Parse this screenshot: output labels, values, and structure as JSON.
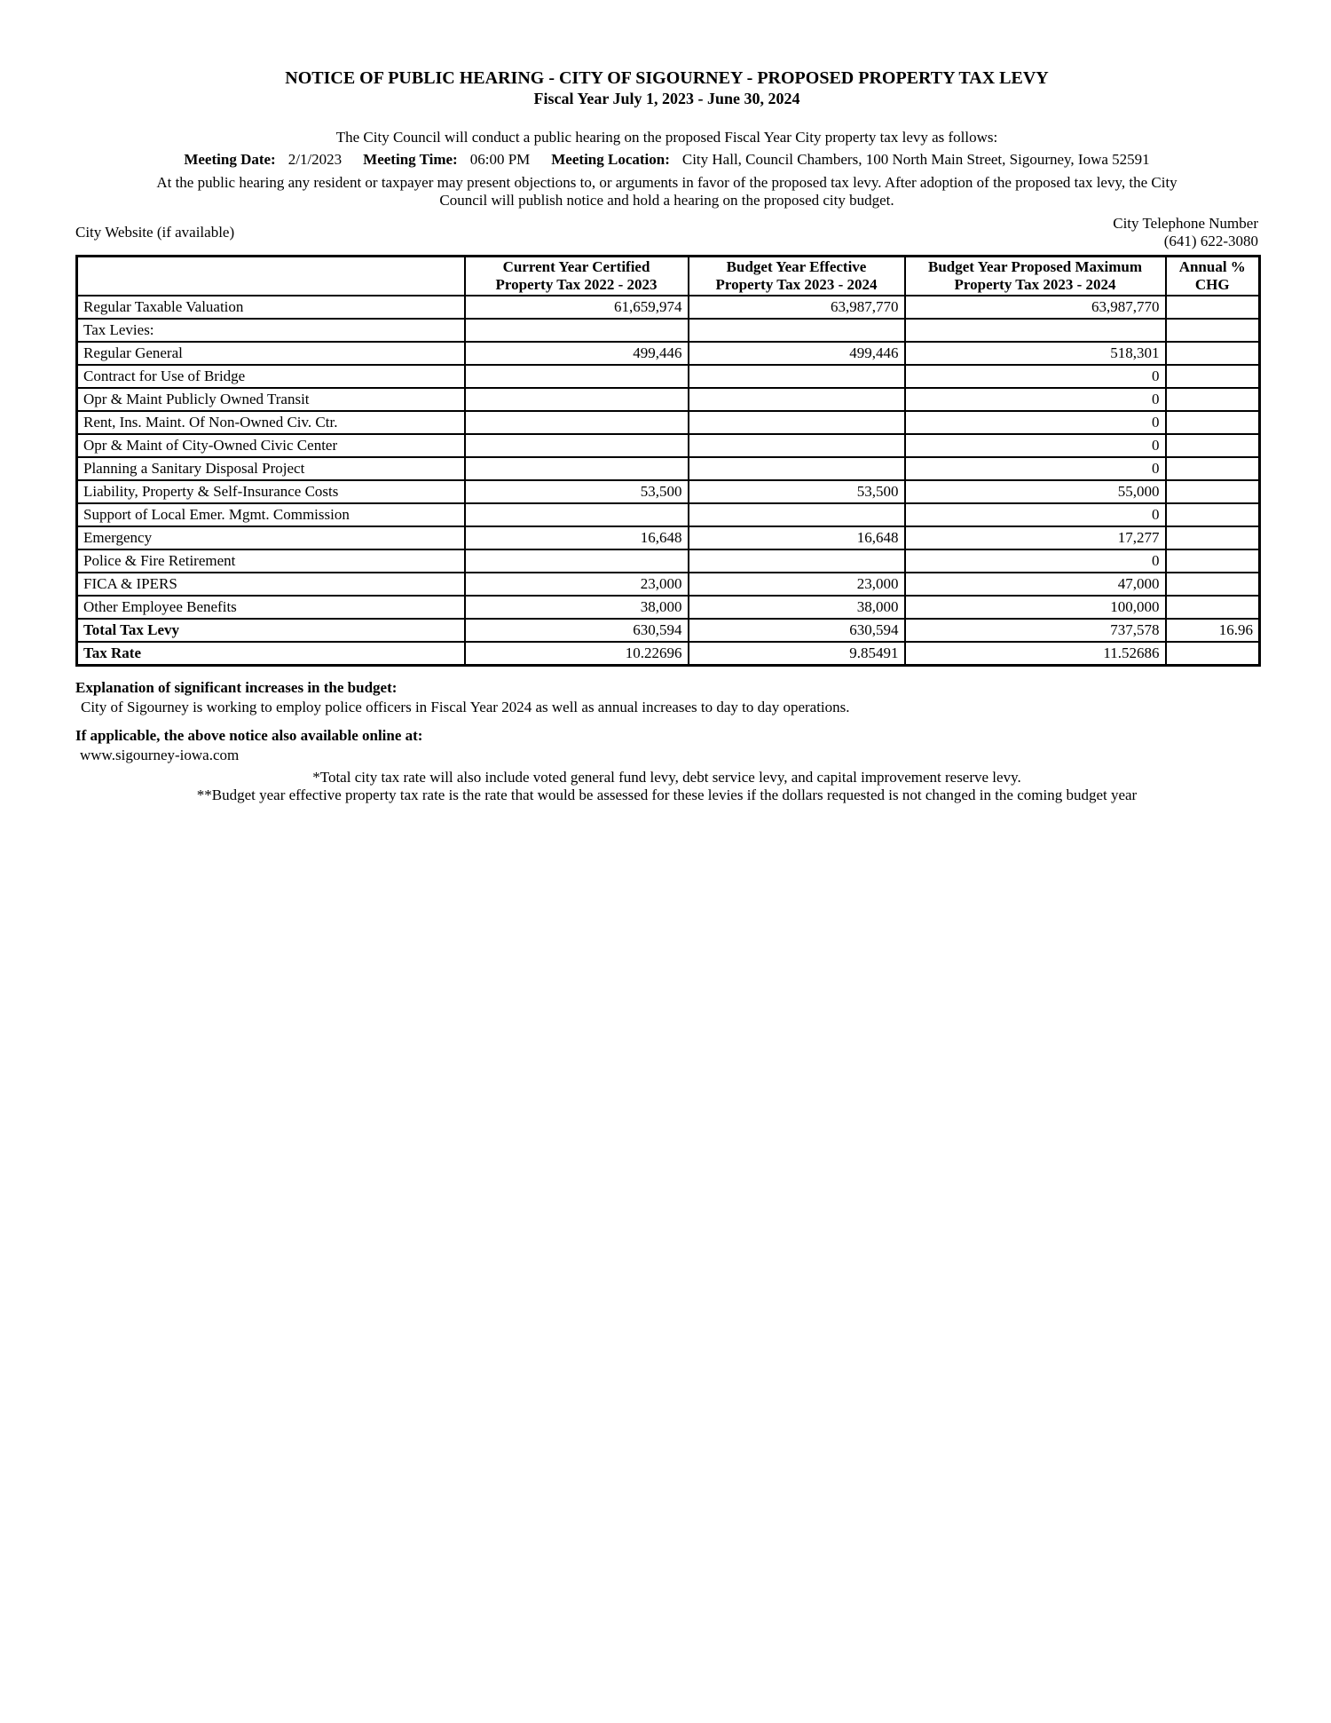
{
  "document": {
    "title": "NOTICE OF PUBLIC HEARING - CITY OF SIGOURNEY - PROPOSED PROPERTY TAX LEVY",
    "subtitle": "Fiscal Year July 1, 2023 - June 30, 2024",
    "intro": "The City Council will conduct a public hearing on the proposed Fiscal Year City property tax levy as follows:",
    "hearing_line1": "At the public hearing any resident or taxpayer may present objections to, or arguments in favor of the proposed tax levy. After adoption of the proposed tax levy, the City",
    "hearing_line2": "Council will publish notice and hold a hearing on the proposed city budget."
  },
  "meeting": {
    "date_label": "Meeting Date:",
    "date": "2/1/2023",
    "time_label": "Meeting Time:",
    "time": "06:00 PM",
    "location_label": "Meeting Location:",
    "location": "City Hall, Council Chambers, 100 North Main Street, Sigourney, Iowa 52591"
  },
  "contact": {
    "website_label": "City Website (if available)",
    "phone_label": "City Telephone Number",
    "phone_number": "(641) 622-3080"
  },
  "table": {
    "headers": [
      "",
      "Current Year Certified\nProperty Tax 2022 - 2023",
      "Budget Year Effective\nProperty Tax 2023 - 2024",
      "Budget Year Proposed Maximum\nProperty Tax 2023 - 2024",
      "Annual %\nCHG"
    ],
    "rows": [
      {
        "label": "Regular Taxable Valuation",
        "current": "61,659,974",
        "effective": "63,987,770",
        "proposed": "63,987,770",
        "chg": "",
        "bold": false
      },
      {
        "label": "Tax Levies:",
        "current": "",
        "effective": "",
        "proposed": "",
        "chg": "",
        "bold": false
      },
      {
        "label": "Regular General",
        "current": "499,446",
        "effective": "499,446",
        "proposed": "518,301",
        "chg": "",
        "bold": false
      },
      {
        "label": "Contract for Use of Bridge",
        "current": "",
        "effective": "",
        "proposed": "0",
        "chg": "",
        "bold": false
      },
      {
        "label": "Opr & Maint Publicly Owned Transit",
        "current": "",
        "effective": "",
        "proposed": "0",
        "chg": "",
        "bold": false
      },
      {
        "label": "Rent, Ins. Maint. Of Non-Owned Civ. Ctr.",
        "current": "",
        "effective": "",
        "proposed": "0",
        "chg": "",
        "bold": false
      },
      {
        "label": "Opr & Maint of City-Owned Civic Center",
        "current": "",
        "effective": "",
        "proposed": "0",
        "chg": "",
        "bold": false
      },
      {
        "label": "Planning a Sanitary Disposal Project",
        "current": "",
        "effective": "",
        "proposed": "0",
        "chg": "",
        "bold": false
      },
      {
        "label": "Liability, Property & Self-Insurance Costs",
        "current": "53,500",
        "effective": "53,500",
        "proposed": "55,000",
        "chg": "",
        "bold": false
      },
      {
        "label": "Support of Local Emer. Mgmt. Commission",
        "current": "",
        "effective": "",
        "proposed": "0",
        "chg": "",
        "bold": false
      },
      {
        "label": "Emergency",
        "current": "16,648",
        "effective": "16,648",
        "proposed": "17,277",
        "chg": "",
        "bold": false
      },
      {
        "label": "Police & Fire Retirement",
        "current": "",
        "effective": "",
        "proposed": "0",
        "chg": "",
        "bold": false
      },
      {
        "label": "FICA & IPERS",
        "current": "23,000",
        "effective": "23,000",
        "proposed": "47,000",
        "chg": "",
        "bold": false
      },
      {
        "label": "Other Employee Benefits",
        "current": "38,000",
        "effective": "38,000",
        "proposed": "100,000",
        "chg": "",
        "bold": false
      },
      {
        "label": "Total Tax Levy",
        "current": "630,594",
        "effective": "630,594",
        "proposed": "737,578",
        "chg": "16.96",
        "bold": true
      },
      {
        "label": "Tax Rate",
        "current": "10.22696",
        "effective": "9.85491",
        "proposed": "11.52686",
        "chg": "",
        "bold": true
      }
    ]
  },
  "explanation": {
    "heading": "Explanation of significant increases in the budget:",
    "text": "City of Sigourney is working to employ police officers in Fiscal Year 2024 as well as annual increases to day to day operations."
  },
  "online": {
    "heading": "If applicable, the above notice also available online at:",
    "url": "www.sigourney-iowa.com"
  },
  "footnotes": {
    "note1": "*Total city tax rate will also include voted general fund levy, debt service levy, and capital improvement reserve levy.",
    "note2": "**Budget year effective property tax rate is the rate that would be assessed for these levies if the dollars requested is not changed in the coming budget year"
  }
}
